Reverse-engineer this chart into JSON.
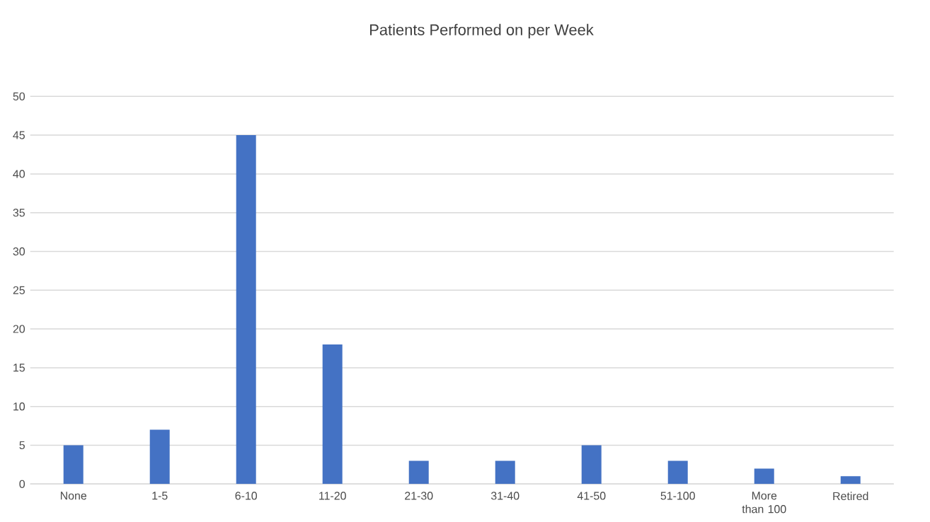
{
  "chart_data": {
    "type": "bar",
    "title": "Patients Performed on per Week",
    "categories": [
      "None",
      "1-5",
      "6-10",
      "11-20",
      "21-30",
      "31-40",
      "41-50",
      "51-100",
      "More than 100",
      "Retired"
    ],
    "values": [
      5,
      7,
      45,
      18,
      3,
      3,
      5,
      3,
      2,
      1
    ],
    "color": "#4472c4",
    "ylim": [
      0,
      50
    ],
    "yticks": [
      0,
      5,
      10,
      15,
      20,
      25,
      30,
      35,
      40,
      45,
      50
    ],
    "grid": "y"
  }
}
